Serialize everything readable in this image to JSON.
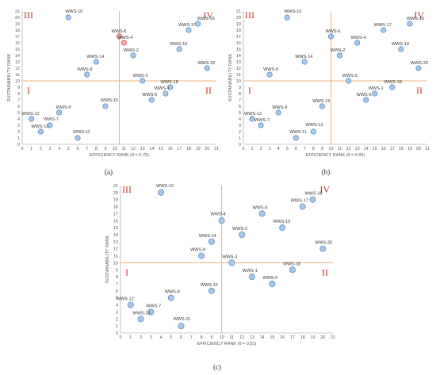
{
  "panel_captions": [
    "(a)",
    "(b)",
    "(c)"
  ],
  "quadrant_labels": [
    "I",
    "II",
    "III",
    "IV"
  ],
  "colors": {
    "point_fill": "#a9c7e6",
    "point_stroke": "#5b8fc9",
    "highlight_fill": "#f4a9a0",
    "highlight_stroke": "#d9534f",
    "divider": "#f0b07a",
    "quadrant_text": "#c0392b"
  },
  "chart_data": [
    {
      "type": "scatter",
      "caption": "(a)",
      "xlabel": "EFFICIENCY RANK (θ = 0.75)",
      "ylabel": "SUSTAINABILITY RANK",
      "xlim": [
        0,
        21
      ],
      "ylim": [
        0,
        21
      ],
      "xticks": [
        0,
        1,
        2,
        3,
        4,
        5,
        6,
        7,
        8,
        9,
        10,
        11,
        12,
        13,
        14,
        15,
        16,
        17,
        18,
        19,
        20,
        21
      ],
      "yticks": [
        0,
        1,
        2,
        3,
        4,
        5,
        6,
        7,
        8,
        9,
        10,
        11,
        12,
        13,
        14,
        15,
        16,
        17,
        18,
        19,
        20,
        21
      ],
      "divider": {
        "x": 10.5,
        "y": 10
      },
      "grid": false,
      "points": [
        {
          "name": "WWS-10",
          "x": 5,
          "y": 20
        },
        {
          "name": "WWS-16",
          "x": 19,
          "y": 19
        },
        {
          "name": "WWS-17",
          "x": 18,
          "y": 18
        },
        {
          "name": "WWS-6",
          "x": 10.5,
          "y": 17,
          "highlight": true
        },
        {
          "name": "WWS-4",
          "x": 11,
          "y": 16,
          "highlight": true
        },
        {
          "name": "WWS-2",
          "x": 12,
          "y": 14
        },
        {
          "name": "WWS-19",
          "x": 17,
          "y": 15
        },
        {
          "name": "WWS-14",
          "x": 8,
          "y": 13
        },
        {
          "name": "WWS-20",
          "x": 20,
          "y": 12
        },
        {
          "name": "WWS-8",
          "x": 7,
          "y": 11
        },
        {
          "name": "WWS-3",
          "x": 13,
          "y": 10
        },
        {
          "name": "WWS-18",
          "x": 16,
          "y": 9
        },
        {
          "name": "WWS-1",
          "x": 15.5,
          "y": 8
        },
        {
          "name": "WWS-5",
          "x": 14,
          "y": 7
        },
        {
          "name": "WWS-15",
          "x": 9,
          "y": 6
        },
        {
          "name": "WWS-9",
          "x": 4,
          "y": 5
        },
        {
          "name": "WWS-12",
          "x": 1,
          "y": 4
        },
        {
          "name": "WWS-7",
          "x": 3,
          "y": 3
        },
        {
          "name": "WWS-13",
          "x": 2,
          "y": 2
        },
        {
          "name": "WWS-11",
          "x": 6,
          "y": 1
        }
      ]
    },
    {
      "type": "scatter",
      "caption": "(b)",
      "xlabel": "EFFICIENCY RANK (θ = 0.99)",
      "ylabel": "SUSTAINABILITY RANK",
      "xlim": [
        0,
        21
      ],
      "ylim": [
        0,
        21
      ],
      "xticks": [
        0,
        1,
        2,
        3,
        4,
        5,
        6,
        7,
        8,
        9,
        10,
        11,
        12,
        13,
        14,
        15,
        16,
        17,
        18,
        19,
        20,
        21
      ],
      "yticks": [
        0,
        1,
        2,
        3,
        4,
        5,
        6,
        7,
        8,
        9,
        10,
        11,
        12,
        13,
        14,
        15,
        16,
        17,
        18,
        19,
        20,
        21
      ],
      "divider": {
        "x": 10,
        "y": 10
      },
      "grid": false,
      "points": [
        {
          "name": "WWS-10",
          "x": 5,
          "y": 20
        },
        {
          "name": "WWS-16",
          "x": 19,
          "y": 19
        },
        {
          "name": "WWS-17",
          "x": 16,
          "y": 18
        },
        {
          "name": "WWS-6",
          "x": 10,
          "y": 17
        },
        {
          "name": "WWS-4",
          "x": 13,
          "y": 16
        },
        {
          "name": "WWS-19",
          "x": 18,
          "y": 15
        },
        {
          "name": "WWS-2",
          "x": 11,
          "y": 14
        },
        {
          "name": "WWS-14",
          "x": 7,
          "y": 13
        },
        {
          "name": "WWS-20",
          "x": 20,
          "y": 12
        },
        {
          "name": "WWS-8",
          "x": 3,
          "y": 11
        },
        {
          "name": "WWS-3",
          "x": 12,
          "y": 10
        },
        {
          "name": "WWS-18",
          "x": 17,
          "y": 9
        },
        {
          "name": "WWS-1",
          "x": 15,
          "y": 8
        },
        {
          "name": "WWS-5",
          "x": 14,
          "y": 7
        },
        {
          "name": "WWS-15",
          "x": 9,
          "y": 6
        },
        {
          "name": "WWS-9",
          "x": 4,
          "y": 5
        },
        {
          "name": "WWS-12",
          "x": 1,
          "y": 4
        },
        {
          "name": "WWS-7",
          "x": 2,
          "y": 3
        },
        {
          "name": "WWS-13",
          "x": 8,
          "y": 2
        },
        {
          "name": "WWS-11",
          "x": 6,
          "y": 1
        }
      ]
    },
    {
      "type": "scatter",
      "caption": "(c)",
      "xlabel": "EFFICIENCY RANK (θ = 0.51)",
      "ylabel": "SUSTAINABILITY RANK",
      "xlim": [
        0,
        21
      ],
      "ylim": [
        0,
        21
      ],
      "xticks": [
        0,
        1,
        2,
        3,
        4,
        5,
        6,
        7,
        8,
        9,
        10,
        11,
        12,
        13,
        14,
        15,
        16,
        17,
        18,
        19,
        20,
        21
      ],
      "yticks": [
        0,
        1,
        2,
        3,
        4,
        5,
        6,
        7,
        8,
        9,
        10,
        11,
        12,
        13,
        14,
        15,
        16,
        17,
        18,
        19,
        20,
        21
      ],
      "divider": {
        "x": 10,
        "y": 10
      },
      "grid": false,
      "points": [
        {
          "name": "WWS-10",
          "x": 4,
          "y": 20
        },
        {
          "name": "WWS-16",
          "x": 19,
          "y": 19
        },
        {
          "name": "WWS-17",
          "x": 18,
          "y": 18
        },
        {
          "name": "WWS-6",
          "x": 14,
          "y": 17
        },
        {
          "name": "WWS-4",
          "x": 10,
          "y": 16
        },
        {
          "name": "WWS-19",
          "x": 16,
          "y": 15
        },
        {
          "name": "WWS-2",
          "x": 12,
          "y": 14
        },
        {
          "name": "WWS-14",
          "x": 9,
          "y": 13
        },
        {
          "name": "WWS-20",
          "x": 20,
          "y": 12
        },
        {
          "name": "WWS-8",
          "x": 8,
          "y": 11
        },
        {
          "name": "WWS-3",
          "x": 11,
          "y": 10
        },
        {
          "name": "WWS-18",
          "x": 17,
          "y": 9
        },
        {
          "name": "WWS-1",
          "x": 13,
          "y": 8
        },
        {
          "name": "WWS-5",
          "x": 15,
          "y": 7
        },
        {
          "name": "WWS-15",
          "x": 9,
          "y": 6
        },
        {
          "name": "WWS-9",
          "x": 5,
          "y": 5
        },
        {
          "name": "WWS-12",
          "x": 1,
          "y": 4
        },
        {
          "name": "WWS-7",
          "x": 3,
          "y": 3
        },
        {
          "name": "WWS-13",
          "x": 2,
          "y": 2
        },
        {
          "name": "WWS-11",
          "x": 6,
          "y": 1
        }
      ]
    }
  ]
}
